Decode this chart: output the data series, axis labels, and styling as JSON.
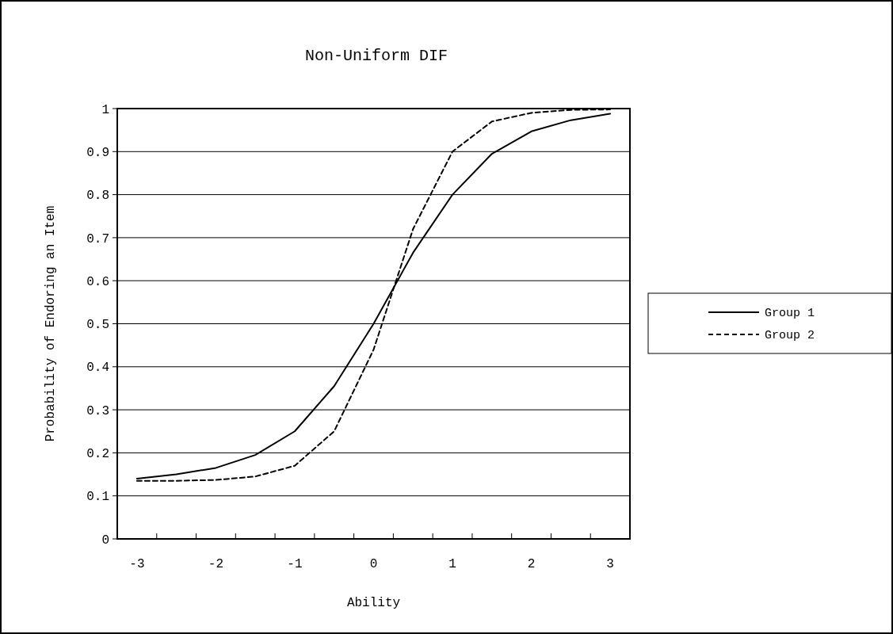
{
  "chart_data": {
    "type": "line",
    "title": "Non-Uniform DIF",
    "xlabel": "Ability",
    "ylabel": "Probability of Endoring an Item",
    "categories": [
      "-3",
      null,
      "-2",
      null,
      "-1",
      null,
      "0",
      null,
      "1",
      null,
      "2",
      null,
      "3"
    ],
    "series": [
      {
        "name": "Group 1",
        "color": "#000000",
        "line_style": "solid",
        "values": [
          0.14,
          0.15,
          0.165,
          0.195,
          0.25,
          0.355,
          0.5,
          0.665,
          0.8,
          0.895,
          0.947,
          0.973,
          0.988
        ]
      },
      {
        "name": "Group 2",
        "color": "#000000",
        "line_style": "dashed",
        "values": [
          0.135,
          0.135,
          0.137,
          0.145,
          0.17,
          0.25,
          0.44,
          0.72,
          0.9,
          0.97,
          0.99,
          0.997,
          0.998
        ]
      }
    ],
    "ylim": [
      0,
      1
    ],
    "yticks": [
      0,
      0.1,
      0.2,
      0.3,
      0.4,
      0.5,
      0.6,
      0.7,
      0.8,
      0.9,
      1
    ],
    "grid": "y",
    "legend": "right",
    "marker": "none"
  }
}
